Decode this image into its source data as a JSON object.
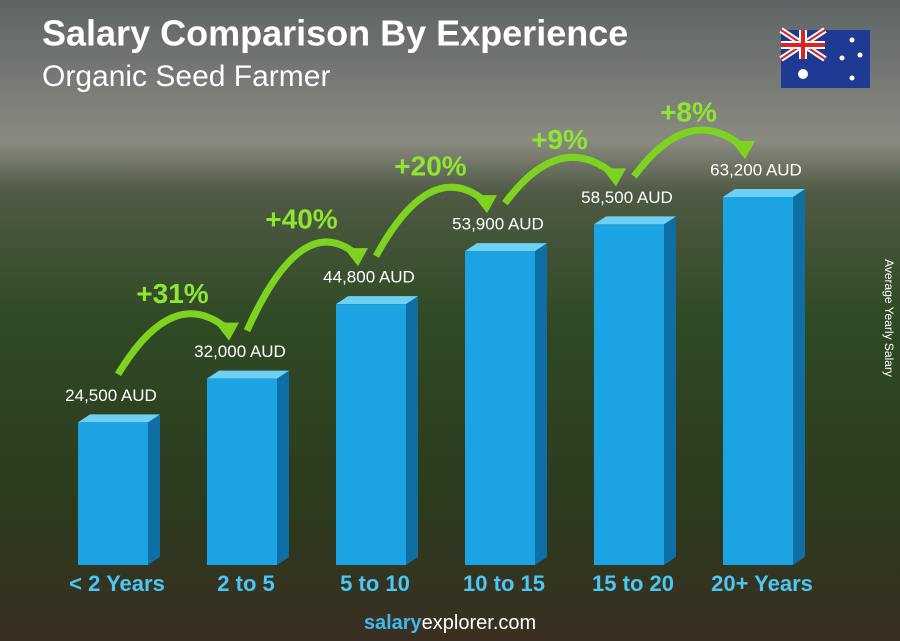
{
  "chart_data": {
    "type": "bar",
    "title": "Salary Comparison By Experience",
    "subtitle": "Organic Seed Farmer",
    "y_label": "Average Yearly Salary",
    "categories": [
      "< 2 Years",
      "2 to 5",
      "5 to 10",
      "10 to 15",
      "15 to 20",
      "20+ Years"
    ],
    "values": [
      24500,
      32000,
      44800,
      53900,
      58500,
      63200
    ],
    "value_labels": [
      "24,500 AUD",
      "32,000 AUD",
      "44,800 AUD",
      "53,900 AUD",
      "58,500 AUD",
      "63,200 AUD"
    ],
    "increases": [
      "+31%",
      "+40%",
      "+20%",
      "+9%",
      "+8%"
    ],
    "color": "#1ca3e3",
    "brand": [
      "salary",
      "explorer.com"
    ]
  }
}
